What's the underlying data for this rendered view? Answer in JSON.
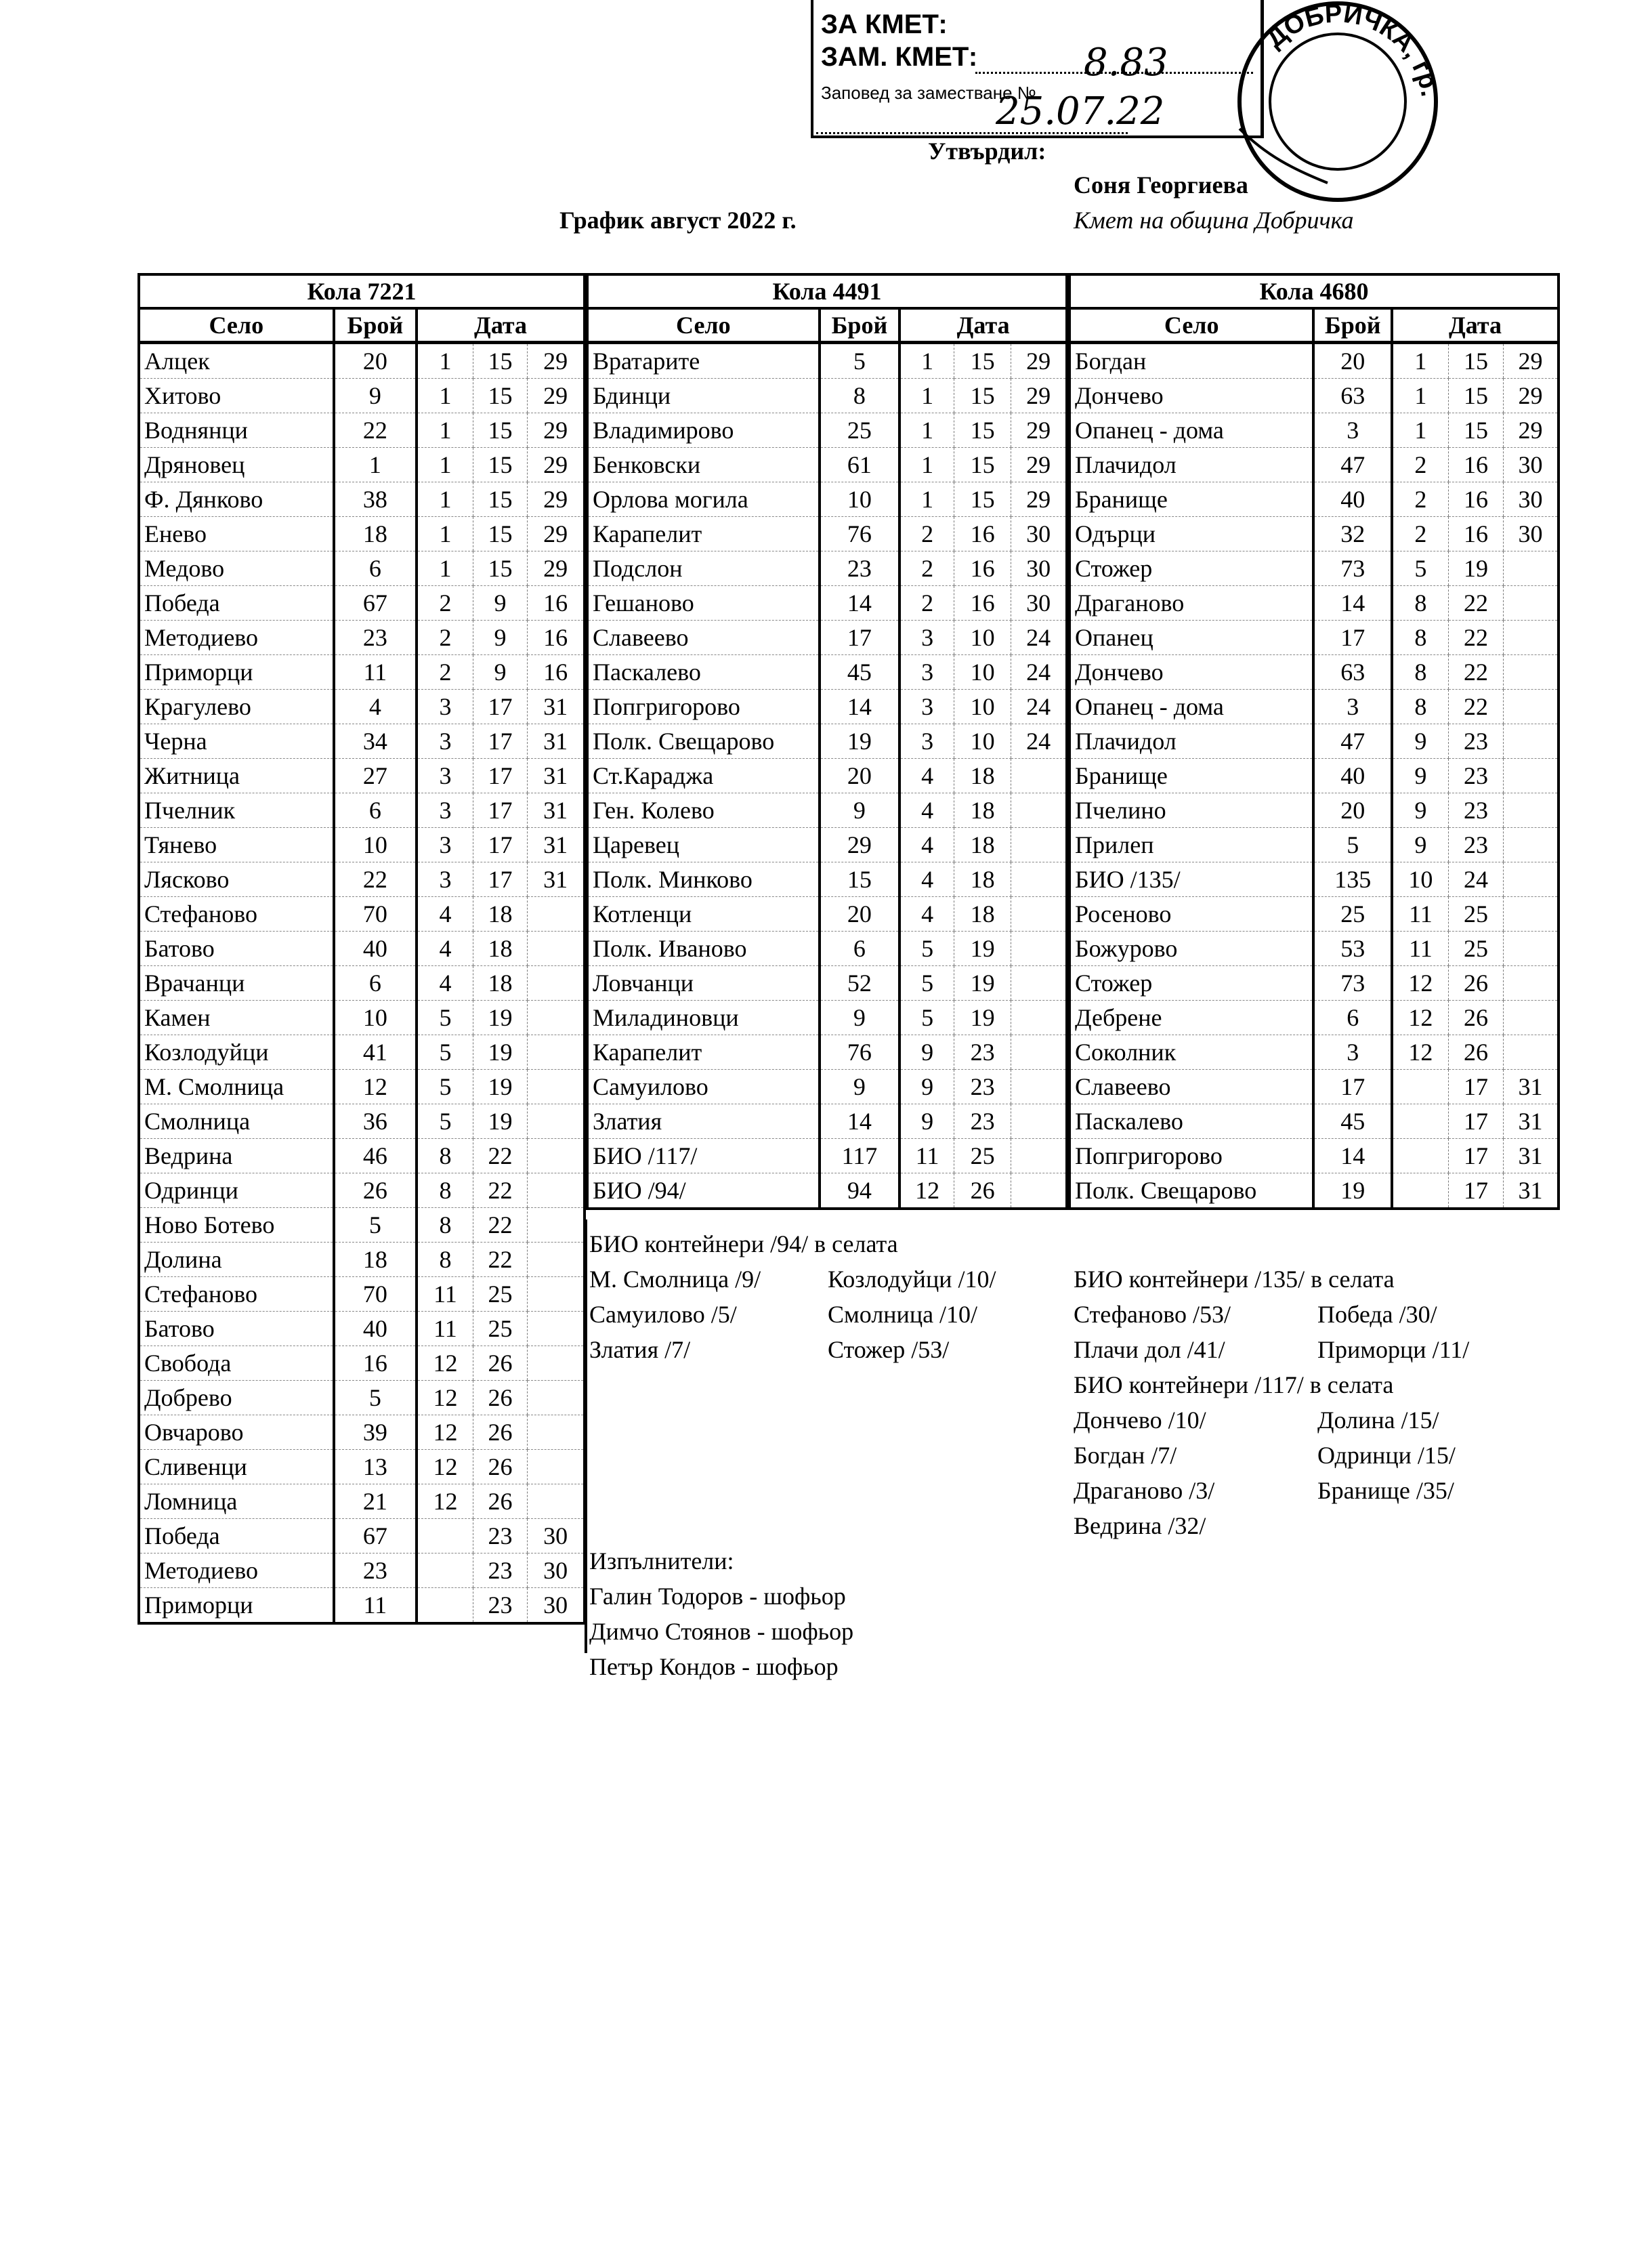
{
  "approval": {
    "for_mayor": "ЗА КМЕТ:",
    "deputy_mayor": "ЗАМ. КМЕТ:",
    "order_label": "Заповед за заместване №",
    "order_number": "8.83",
    "order_date": "25.07.22",
    "approved_label": "Утвърдил:",
    "approver_name": "Соня Георгиева",
    "approver_title": "Кмет на община Добричка",
    "stamp_text": "ДОБРИЧКА, гр."
  },
  "title": "График август 2022 г.",
  "columns": {
    "village": "Село",
    "count": "Брой",
    "date": "Дата"
  },
  "blocks": [
    {
      "truck": "Кола 7221",
      "rows": [
        [
          "Алцек",
          "20",
          "1",
          "15",
          "29"
        ],
        [
          "Хитово",
          "9",
          "1",
          "15",
          "29"
        ],
        [
          "Воднянци",
          "22",
          "1",
          "15",
          "29"
        ],
        [
          "Дряновец",
          "1",
          "1",
          "15",
          "29"
        ],
        [
          "Ф. Дянково",
          "38",
          "1",
          "15",
          "29"
        ],
        [
          "Енево",
          "18",
          "1",
          "15",
          "29"
        ],
        [
          "Медово",
          "6",
          "1",
          "15",
          "29"
        ],
        [
          "Победа",
          "67",
          "2",
          "9",
          "16"
        ],
        [
          "Методиево",
          "23",
          "2",
          "9",
          "16"
        ],
        [
          "Приморци",
          "11",
          "2",
          "9",
          "16"
        ],
        [
          "Крагулево",
          "4",
          "3",
          "17",
          "31"
        ],
        [
          "Черна",
          "34",
          "3",
          "17",
          "31"
        ],
        [
          "Житница",
          "27",
          "3",
          "17",
          "31"
        ],
        [
          "Пчелник",
          "6",
          "3",
          "17",
          "31"
        ],
        [
          "Тянево",
          "10",
          "3",
          "17",
          "31"
        ],
        [
          "Лясково",
          "22",
          "3",
          "17",
          "31"
        ],
        [
          "Стефаново",
          "70",
          "4",
          "18",
          ""
        ],
        [
          "Батово",
          "40",
          "4",
          "18",
          ""
        ],
        [
          "Врачанци",
          "6",
          "4",
          "18",
          ""
        ],
        [
          "Камен",
          "10",
          "5",
          "19",
          ""
        ],
        [
          "Козлодуйци",
          "41",
          "5",
          "19",
          ""
        ],
        [
          "М. Смолница",
          "12",
          "5",
          "19",
          ""
        ],
        [
          "Смолница",
          "36",
          "5",
          "19",
          ""
        ],
        [
          "Ведрина",
          "46",
          "8",
          "22",
          ""
        ],
        [
          "Одринци",
          "26",
          "8",
          "22",
          ""
        ],
        [
          "Ново Ботево",
          "5",
          "8",
          "22",
          ""
        ],
        [
          "Долина",
          "18",
          "8",
          "22",
          ""
        ],
        [
          "Стефаново",
          "70",
          "11",
          "25",
          ""
        ],
        [
          "Батово",
          "40",
          "11",
          "25",
          ""
        ],
        [
          "Свобода",
          "16",
          "12",
          "26",
          ""
        ],
        [
          "Добрево",
          "5",
          "12",
          "26",
          ""
        ],
        [
          "Овчарово",
          "39",
          "12",
          "26",
          ""
        ],
        [
          "Сливенци",
          "13",
          "12",
          "26",
          ""
        ],
        [
          "Ломница",
          "21",
          "12",
          "26",
          ""
        ],
        [
          "Победа",
          "67",
          "",
          "23",
          "30"
        ],
        [
          "Методиево",
          "23",
          "",
          "23",
          "30"
        ],
        [
          "Приморци",
          "11",
          "",
          "23",
          "30"
        ]
      ]
    },
    {
      "truck": "Кола 4491",
      "rows": [
        [
          "Вратарите",
          "5",
          "1",
          "15",
          "29"
        ],
        [
          "Бдинци",
          "8",
          "1",
          "15",
          "29"
        ],
        [
          "Владимирово",
          "25",
          "1",
          "15",
          "29"
        ],
        [
          "Бенковски",
          "61",
          "1",
          "15",
          "29"
        ],
        [
          "Орлова могила",
          "10",
          "1",
          "15",
          "29"
        ],
        [
          "Карапелит",
          "76",
          "2",
          "16",
          "30"
        ],
        [
          "Подслон",
          "23",
          "2",
          "16",
          "30"
        ],
        [
          "Гешаново",
          "14",
          "2",
          "16",
          "30"
        ],
        [
          "Славеево",
          "17",
          "3",
          "10",
          "24"
        ],
        [
          "Паскалево",
          "45",
          "3",
          "10",
          "24"
        ],
        [
          "Попгригорово",
          "14",
          "3",
          "10",
          "24"
        ],
        [
          "Полк. Свещарово",
          "19",
          "3",
          "10",
          "24"
        ],
        [
          "Ст.Караджа",
          "20",
          "4",
          "18",
          ""
        ],
        [
          "Ген. Колево",
          "9",
          "4",
          "18",
          ""
        ],
        [
          "Царевец",
          "29",
          "4",
          "18",
          ""
        ],
        [
          "Полк. Минково",
          "15",
          "4",
          "18",
          ""
        ],
        [
          "Котленци",
          "20",
          "4",
          "18",
          ""
        ],
        [
          "Полк. Иваново",
          "6",
          "5",
          "19",
          ""
        ],
        [
          "Ловчанци",
          "52",
          "5",
          "19",
          ""
        ],
        [
          "Миладиновци",
          "9",
          "5",
          "19",
          ""
        ],
        [
          "Карапелит",
          "76",
          "9",
          "23",
          ""
        ],
        [
          "Самуилово",
          "9",
          "9",
          "23",
          ""
        ],
        [
          "Златия",
          "14",
          "9",
          "23",
          ""
        ],
        [
          "БИО /117/",
          "117",
          "11",
          "25",
          ""
        ],
        [
          "БИО /94/",
          "94",
          "12",
          "26",
          ""
        ]
      ]
    },
    {
      "truck": "Кола 4680",
      "rows": [
        [
          "Богдан",
          "20",
          "1",
          "15",
          "29"
        ],
        [
          "Дончево",
          "63",
          "1",
          "15",
          "29"
        ],
        [
          "Опанец - дома",
          "3",
          "1",
          "15",
          "29"
        ],
        [
          "Плачидол",
          "47",
          "2",
          "16",
          "30"
        ],
        [
          "Бранище",
          "40",
          "2",
          "16",
          "30"
        ],
        [
          "Одърци",
          "32",
          "2",
          "16",
          "30"
        ],
        [
          "Стожер",
          "73",
          "5",
          "19",
          ""
        ],
        [
          "Драганово",
          "14",
          "8",
          "22",
          ""
        ],
        [
          "Опанец",
          "17",
          "8",
          "22",
          ""
        ],
        [
          "Дончево",
          "63",
          "8",
          "22",
          ""
        ],
        [
          "Опанец - дома",
          "3",
          "8",
          "22",
          ""
        ],
        [
          "Плачидол",
          "47",
          "9",
          "23",
          ""
        ],
        [
          "Бранище",
          "40",
          "9",
          "23",
          ""
        ],
        [
          "Пчелино",
          "20",
          "9",
          "23",
          ""
        ],
        [
          "Прилеп",
          "5",
          "9",
          "23",
          ""
        ],
        [
          "БИО /135/",
          "135",
          "10",
          "24",
          ""
        ],
        [
          "Росеново",
          "25",
          "11",
          "25",
          ""
        ],
        [
          "Божурово",
          "53",
          "11",
          "25",
          ""
        ],
        [
          "Стожер",
          "73",
          "12",
          "26",
          ""
        ],
        [
          "Дебрене",
          "6",
          "12",
          "26",
          ""
        ],
        [
          "Соколник",
          "3",
          "12",
          "26",
          ""
        ],
        [
          "Славеево",
          "17",
          "",
          "17",
          "31"
        ],
        [
          "Паскалево",
          "45",
          "",
          "17",
          "31"
        ],
        [
          "Попгригорово",
          "14",
          "",
          "17",
          "31"
        ],
        [
          "Полк. Свещарово",
          "19",
          "",
          "17",
          "31"
        ]
      ]
    }
  ],
  "notes": {
    "bio94": {
      "heading": "БИО контейнери /94/ в селата",
      "items": [
        [
          "М. Смолница /9/",
          "Козлодуйци /10/"
        ],
        [
          "Самуилово /5/",
          "Смолница /10/"
        ],
        [
          "Златия /7/",
          "Стожер /53/"
        ]
      ]
    },
    "bio135": {
      "heading": "БИО контейнери /135/ в селата",
      "items": [
        [
          "Стефаново /53/",
          "Победа /30/"
        ],
        [
          "Плачи дол /41/",
          "Приморци /11/"
        ]
      ]
    },
    "bio117": {
      "heading": "БИО контейнери /117/ в селата",
      "items": [
        [
          "Дончево /10/",
          "Долина /15/"
        ],
        [
          "Богдан /7/",
          "Одринци /15/"
        ],
        [
          "Драганово /3/",
          "Бранище /35/"
        ],
        [
          "Ведрина /32/",
          ""
        ]
      ]
    },
    "executors": {
      "heading": "Изпълнители:",
      "people": [
        "Галин Тодоров - шофьор",
        "Димчо Стоянов - шофьор",
        "Петър Кондов - шофьор"
      ]
    }
  }
}
